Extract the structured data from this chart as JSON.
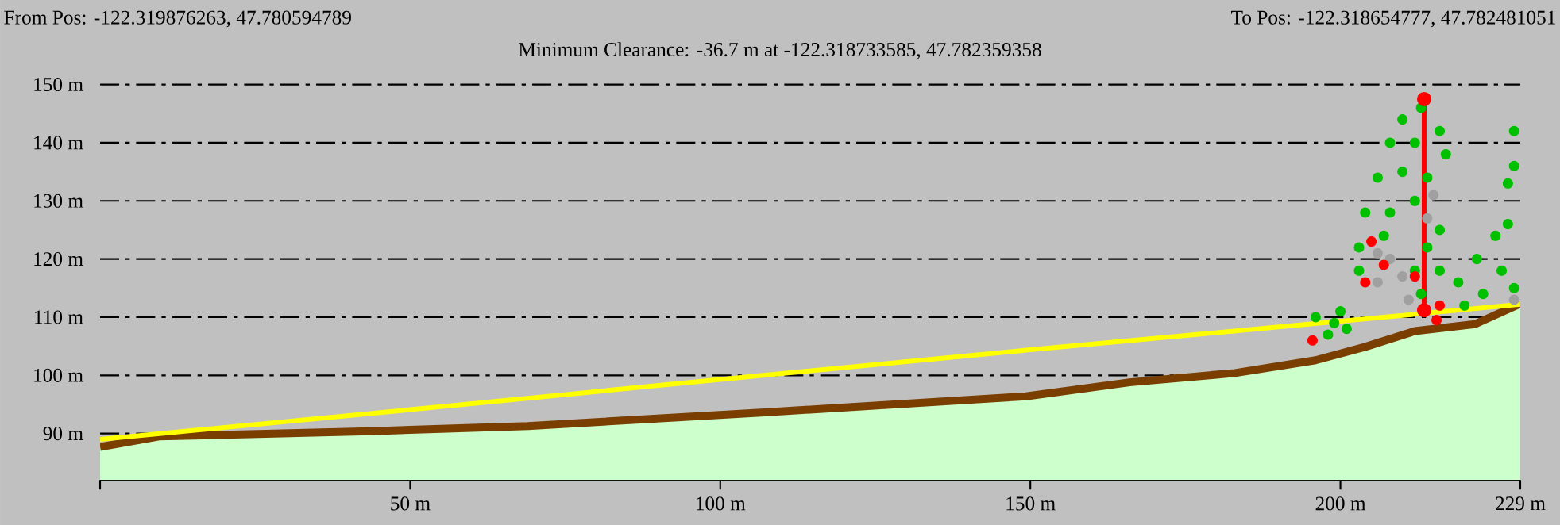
{
  "chart_data": {
    "type": "line",
    "title": "Minimum Clearance: -36.7 m at -122.318733585, 47.782359358",
    "annotations": [
      "From Pos: -122.319876263, 47.780594789",
      "To Pos: -122.318654777, 47.782481051"
    ],
    "xlim": [
      0,
      229
    ],
    "ylim": [
      82,
      150
    ],
    "xticks": [
      {
        "value": 0,
        "label": null
      },
      {
        "value": 50,
        "label": "50 m"
      },
      {
        "value": 100,
        "label": "100 m"
      },
      {
        "value": 150,
        "label": "150 m"
      },
      {
        "value": 200,
        "label": "200 m"
      },
      {
        "value": 229,
        "label": "229 m"
      }
    ],
    "yticks": [
      {
        "value": 90,
        "label": "90 m"
      },
      {
        "value": 100,
        "label": "100 m"
      },
      {
        "value": 110,
        "label": "110 m"
      },
      {
        "value": 120,
        "label": "120 m"
      },
      {
        "value": 130,
        "label": "130 m"
      },
      {
        "value": 140,
        "label": "140 m"
      },
      {
        "value": 150,
        "label": "150 m"
      }
    ],
    "grid": "y",
    "series": [
      {
        "type": "area",
        "color": "#ccffcc",
        "x": [
          0,
          9.5,
          43.5,
          69,
          106.6,
          149.3,
          166,
          183,
          196,
          204,
          212,
          221.7,
          229
        ],
        "values": [
          87.7,
          89.5,
          90.4,
          91.3,
          93.6,
          96.4,
          98.8,
          100.4,
          102.6,
          104.9,
          107.6,
          108.8,
          112.3
        ]
      },
      {
        "color": "#7a3e00",
        "marker": "none",
        "x": [
          0,
          9.5,
          43.5,
          69,
          106.6,
          149.3,
          166,
          183,
          196,
          204,
          212,
          221.7,
          229
        ],
        "values": [
          87.7,
          89.5,
          90.4,
          91.3,
          93.6,
          96.4,
          98.8,
          100.4,
          102.6,
          104.9,
          107.6,
          108.8,
          112.3
        ]
      },
      {
        "color": "#ffff00",
        "marker": "none",
        "x": [
          0,
          50,
          100,
          150,
          200,
          229
        ],
        "values": [
          89.0,
          94.1,
          99.3,
          104.4,
          109.3,
          112.2
        ]
      },
      {
        "type": "scatter",
        "color": "#00c000",
        "marker": "circle",
        "x": [
          210,
          213,
          216,
          208,
          212,
          217,
          206,
          210,
          214,
          204,
          208,
          212,
          203,
          207,
          214,
          216,
          203,
          212,
          216,
          213,
          196,
          199,
          201,
          198,
          200,
          219,
          222,
          225,
          227,
          223,
          226,
          228,
          220,
          228,
          228,
          227
        ],
        "values": [
          144,
          146,
          142,
          140,
          140,
          138,
          134,
          135,
          134,
          128,
          128,
          130,
          122,
          124,
          122,
          125,
          118,
          118,
          118,
          114,
          110,
          109,
          108,
          107,
          111,
          116,
          120,
          124,
          126,
          114,
          118,
          115,
          112,
          142,
          136,
          133
        ]
      },
      {
        "type": "scatter",
        "color": "#a0a0a0",
        "marker": "circle",
        "x": [
          206,
          208,
          210,
          206,
          214,
          215,
          211,
          228
        ],
        "values": [
          121,
          120,
          117,
          116,
          127,
          131,
          113,
          113
        ]
      },
      {
        "type": "scatter",
        "color": "#ff0000",
        "marker": "circle",
        "x": [
          205,
          207,
          212,
          204,
          216,
          195.5,
          215.5
        ],
        "values": [
          123,
          119,
          117,
          116,
          112,
          106,
          109.5
        ]
      },
      {
        "color": "#ff0000",
        "marker": "circle",
        "x": [
          213.5,
          213.5
        ],
        "values": [
          111.2,
          147.5
        ]
      }
    ]
  }
}
